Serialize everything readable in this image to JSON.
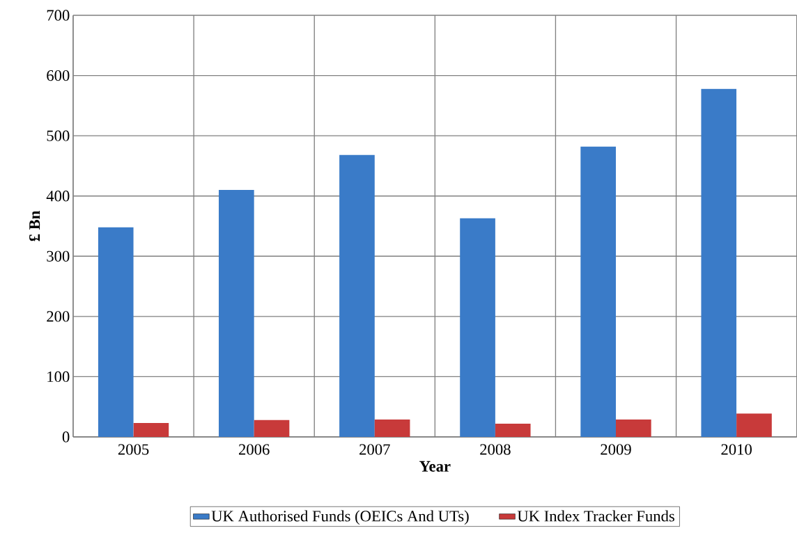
{
  "chart_data": {
    "type": "bar",
    "xlabel": "Year",
    "ylabel": "£ Bn",
    "categories": [
      "2005",
      "2006",
      "2007",
      "2008",
      "2009",
      "2010"
    ],
    "series": [
      {
        "name": "UK Authorised Funds (OEICs And UTs)",
        "color": "#3a7bc8",
        "values": [
          348,
          410,
          468,
          363,
          482,
          578
        ]
      },
      {
        "name": "UK Index Tracker Funds",
        "color": "#c83a3a",
        "values": [
          23,
          28,
          29,
          22,
          29,
          39
        ]
      }
    ],
    "ylim": [
      0,
      700
    ],
    "yticks": [
      0,
      100,
      200,
      300,
      400,
      500,
      600,
      700
    ],
    "grid": true,
    "legend": "bottom"
  }
}
